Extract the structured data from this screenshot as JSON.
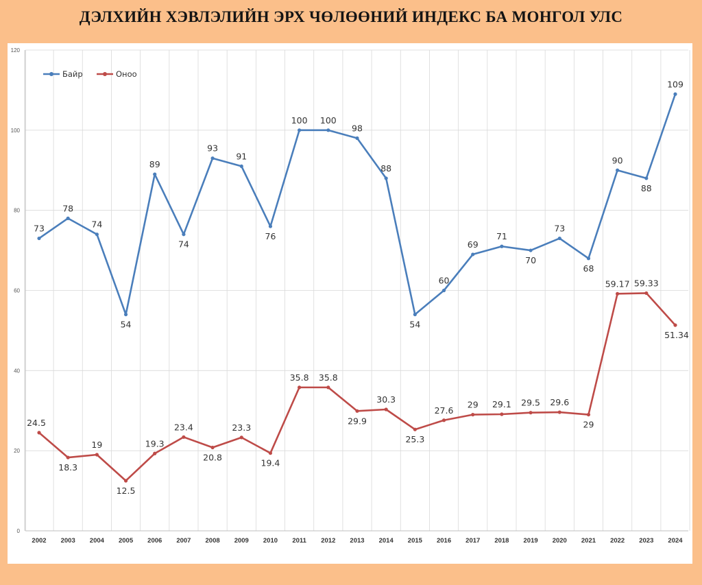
{
  "page": {
    "title": "ДЭЛХИЙН ХЭВЛЭЛИЙН ЭРХ ЧӨЛӨӨНИЙ ИНДЕКС БА МОНГОЛ УЛС"
  },
  "colors": {
    "background": "#fbbf8a",
    "series_bayr": "#4a7ebb",
    "series_onoo": "#be4b48",
    "grid": "#d9d9d9"
  },
  "chart_data": {
    "type": "line",
    "title": "ДЭЛХИЙН ХЭВЛЭЛИЙН ЭРХ ЧӨЛӨӨНИЙ ИНДЕКС БА МОНГОЛ УЛС",
    "xlabel": "",
    "ylabel": "",
    "ylim": [
      0,
      120
    ],
    "yticks": [
      "0",
      "20",
      "40",
      "60",
      "80",
      "100",
      "120"
    ],
    "grid": true,
    "legend_position": "top-left",
    "categories": [
      "2002",
      "2003",
      "2004",
      "2005",
      "2006",
      "2007",
      "2008",
      "2009",
      "2010",
      "2011",
      "2012",
      "2013",
      "2014",
      "2015",
      "2016",
      "2017",
      "2018",
      "2019",
      "2020",
      "2021",
      "2022",
      "2023",
      "2024"
    ],
    "series": [
      {
        "name": "Байр",
        "color": "#4a7ebb",
        "values": [
          73,
          78,
          74,
          54,
          89,
          74,
          93,
          91,
          76,
          100,
          100,
          98,
          88,
          54,
          60,
          69,
          71,
          70,
          73,
          68,
          90,
          88,
          109
        ],
        "labels": [
          "73",
          "78",
          "74",
          "54",
          "89",
          "74",
          "93",
          "91",
          "76",
          "100",
          "100",
          "98",
          "88",
          "54",
          "60",
          "69",
          "71",
          "70",
          "73",
          "68",
          "90",
          "88",
          "109"
        ]
      },
      {
        "name": "Оноо",
        "color": "#be4b48",
        "values": [
          24.5,
          18.3,
          19,
          12.5,
          19.3,
          23.4,
          20.8,
          23.3,
          19.4,
          35.8,
          35.8,
          29.9,
          30.3,
          25.3,
          27.6,
          29,
          29.1,
          29.5,
          29.6,
          29,
          59.17,
          59.33,
          51.34
        ],
        "labels": [
          "24.5",
          "18.3",
          "19",
          "12.5",
          "19.3",
          "23.4",
          "20.8",
          "23.3",
          "19.4",
          "35.8",
          "35.8",
          "29.9",
          "30.3",
          "25.3",
          "27.6",
          "29",
          "29.1",
          "29.5",
          "29.6",
          "29",
          "59.17",
          "59.33",
          "51.34"
        ]
      }
    ]
  }
}
